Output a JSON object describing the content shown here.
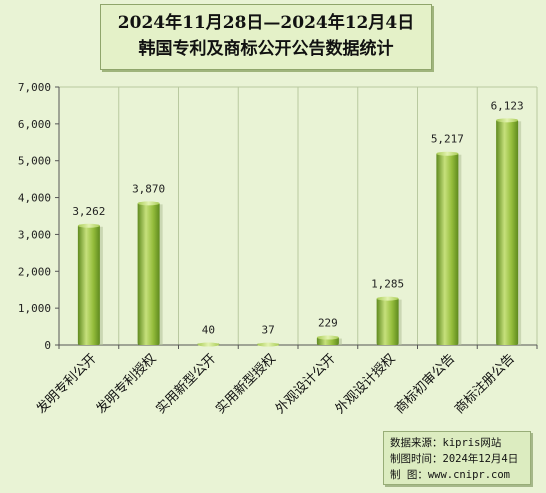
{
  "chart_data": {
    "type": "bar",
    "title": "2024年11月28日—2024年12月4日",
    "subtitle": "韩国专利及商标公开公告数据统计",
    "categories": [
      "发明专利公开",
      "发明专利授权",
      "实用新型公开",
      "实用新型授权",
      "外观设计公开",
      "外观设计授权",
      "商标初审公告",
      "商标注册公告"
    ],
    "values": [
      3262,
      3870,
      40,
      37,
      229,
      1285,
      5217,
      6123
    ],
    "value_labels": [
      "3,262",
      "3,870",
      "40",
      "37",
      "229",
      "1,285",
      "5,217",
      "6,123"
    ],
    "ylim": [
      0,
      7000
    ],
    "yticks": [
      0,
      1000,
      2000,
      3000,
      4000,
      5000,
      6000,
      7000
    ],
    "ytick_labels": [
      "0",
      "1,000",
      "2,000",
      "3,000",
      "4,000",
      "5,000",
      "6,000",
      "7,000"
    ],
    "grid": "vertical lines between categories",
    "legend": "none",
    "colors": {
      "bar_light": "#c6e07c",
      "bar_mid": "#95bd3c",
      "bar_dark": "#5f8a1e",
      "background": "#e9f3d5"
    }
  },
  "source": {
    "line1": "数据来源：kipris网站",
    "line2": "制图时间：2024年12月4日",
    "line3": "制    图：www.cnipr.com"
  }
}
